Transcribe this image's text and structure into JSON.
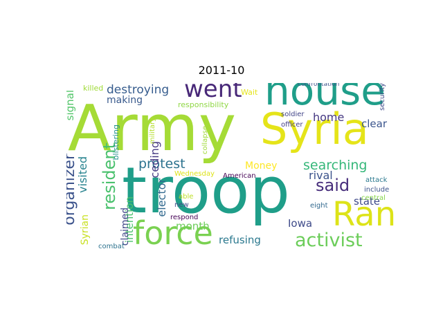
{
  "figure": {
    "title": "2011-10"
  },
  "words": [
    {
      "text": "Army",
      "color": "#a5db36"
    },
    {
      "text": "troop",
      "color": "#1f9e89"
    },
    {
      "text": "house",
      "color": "#1f9e89"
    },
    {
      "text": "Syria",
      "color": "#e5e419"
    },
    {
      "text": "Ran",
      "color": "#dde318"
    },
    {
      "text": "force",
      "color": "#7ad151"
    },
    {
      "text": "activist",
      "color": "#6ccd5a"
    },
    {
      "text": "went",
      "color": "#482878"
    },
    {
      "text": "said",
      "color": "#472d7b"
    },
    {
      "text": "resident",
      "color": "#4ac16d"
    },
    {
      "text": "destroying",
      "color": "#365c8d"
    },
    {
      "text": "protest",
      "color": "#2c728e"
    },
    {
      "text": "searching",
      "color": "#35b779"
    },
    {
      "text": "organizer",
      "color": "#3b528b"
    },
    {
      "text": "making",
      "color": "#38598c"
    },
    {
      "text": "signal",
      "color": "#52c569"
    },
    {
      "text": "visited",
      "color": "#26828e"
    },
    {
      "text": "Syrian",
      "color": "#c8e020"
    },
    {
      "text": "intention",
      "color": "#4ac16d"
    },
    {
      "text": "claimed",
      "color": "#3f4889"
    },
    {
      "text": "ceding",
      "color": "#453882"
    },
    {
      "text": "elector",
      "color": "#31688e"
    },
    {
      "text": "month",
      "color": "#6ccd5a"
    },
    {
      "text": "refusing",
      "color": "#2a788e"
    },
    {
      "text": "Iowa",
      "color": "#3e4a89"
    },
    {
      "text": "Money",
      "color": "#fde725"
    },
    {
      "text": "home",
      "color": "#453882"
    },
    {
      "text": "clear",
      "color": "#3a548c"
    },
    {
      "text": "rival",
      "color": "#3b528b"
    },
    {
      "text": "state",
      "color": "#3e4989"
    },
    {
      "text": "killed",
      "color": "#a0da39"
    },
    {
      "text": "responsibility",
      "color": "#8fd744"
    },
    {
      "text": "Wait",
      "color": "#e5e419"
    },
    {
      "text": "confrontation",
      "color": "#3b528b"
    },
    {
      "text": "security",
      "color": "#3e4989"
    },
    {
      "text": "soldier",
      "color": "#414487"
    },
    {
      "text": "officer",
      "color": "#433e85"
    },
    {
      "text": "blistering",
      "color": "#21918c"
    },
    {
      "text": "military",
      "color": "#b5de2b"
    },
    {
      "text": "collapse",
      "color": "#a0da39"
    },
    {
      "text": "Wednesday",
      "color": "#dde318"
    },
    {
      "text": "American",
      "color": "#440154"
    },
    {
      "text": "attack",
      "color": "#2a788e"
    },
    {
      "text": "include",
      "color": "#3b528b"
    },
    {
      "text": "central",
      "color": "#86d549"
    },
    {
      "text": "eight",
      "color": "#31688e"
    },
    {
      "text": "able",
      "color": "#bddf26"
    },
    {
      "text": "new",
      "color": "#3e4a89"
    },
    {
      "text": "respond",
      "color": "#440154"
    },
    {
      "text": "combat",
      "color": "#2c728e"
    }
  ]
}
